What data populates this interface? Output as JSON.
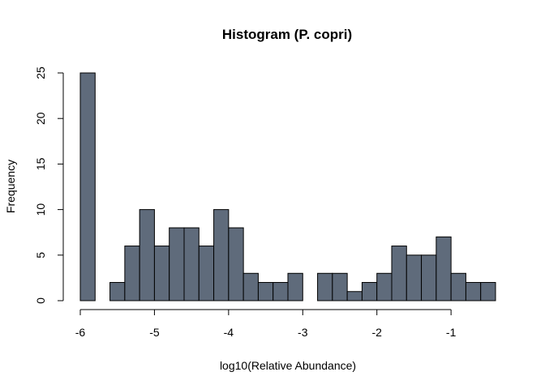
{
  "chart_data": {
    "type": "bar",
    "title": "Histogram (P. copri)",
    "xlabel": "log10(Relative Abundance)",
    "ylabel": "Frequency",
    "bin_width": 0.2,
    "x_start": -6.0,
    "values": [
      25,
      0,
      2,
      6,
      10,
      6,
      8,
      8,
      6,
      10,
      8,
      3,
      2,
      2,
      3,
      0,
      3,
      3,
      1,
      2,
      3,
      6,
      5,
      5,
      7,
      3,
      2,
      2
    ],
    "xlim": [
      -6,
      -0.4
    ],
    "ylim": [
      0,
      25
    ],
    "xticks": [
      -6,
      -5,
      -4,
      -3,
      -2,
      -1
    ],
    "xtick_labels": [
      "-6",
      "-5",
      "-4",
      "-3",
      "-2",
      "-1"
    ],
    "yticks": [
      0,
      5,
      10,
      15,
      20,
      25
    ],
    "ytick_labels": [
      "0",
      "5",
      "10",
      "15",
      "20",
      "25"
    ],
    "bar_color": "#5f6b7b",
    "grid": false,
    "legend": "none"
  }
}
